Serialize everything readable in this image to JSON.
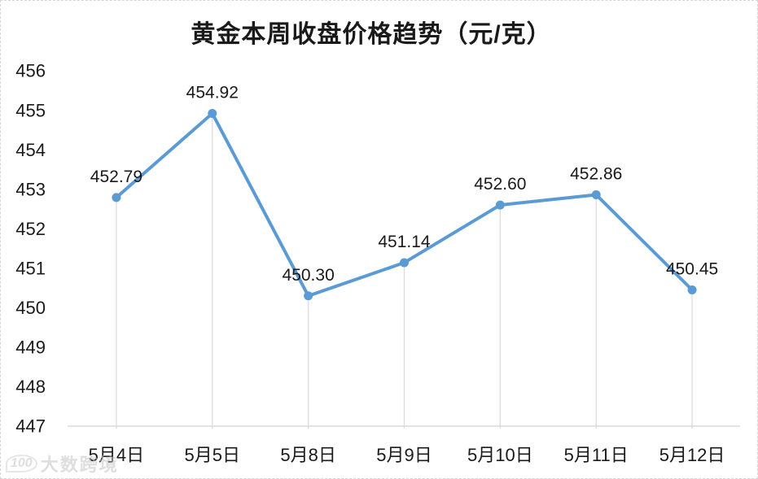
{
  "title": "黄金本周收盘价格趋势（元/克）",
  "watermark": {
    "logo_text": "100",
    "text": "大数跨境"
  },
  "chart_data": {
    "type": "line",
    "title": "黄金本周收盘价格趋势（元/克）",
    "categories": [
      "5月4日",
      "5月5日",
      "5月8日",
      "5月9日",
      "5月10日",
      "5月11日",
      "5月12日"
    ],
    "values": [
      452.79,
      454.92,
      450.3,
      451.14,
      452.6,
      452.86,
      450.45
    ],
    "data_labels": [
      "452.79",
      "454.92",
      "450.30",
      "451.14",
      "452.60",
      "452.86",
      "450.45"
    ],
    "xlabel": "",
    "ylabel": "",
    "ylim": [
      447,
      456
    ],
    "yticks": [
      447,
      448,
      449,
      450,
      451,
      452,
      453,
      454,
      455,
      456
    ],
    "grid": "vertical-drop-lines-only",
    "legend": "none",
    "colors": {
      "line": "#5B9BD5",
      "marker": "#5B9BD5",
      "axis_line": "#d9d9d9",
      "drop_line": "#dcdcdc",
      "text": "#1a1a1a"
    }
  }
}
